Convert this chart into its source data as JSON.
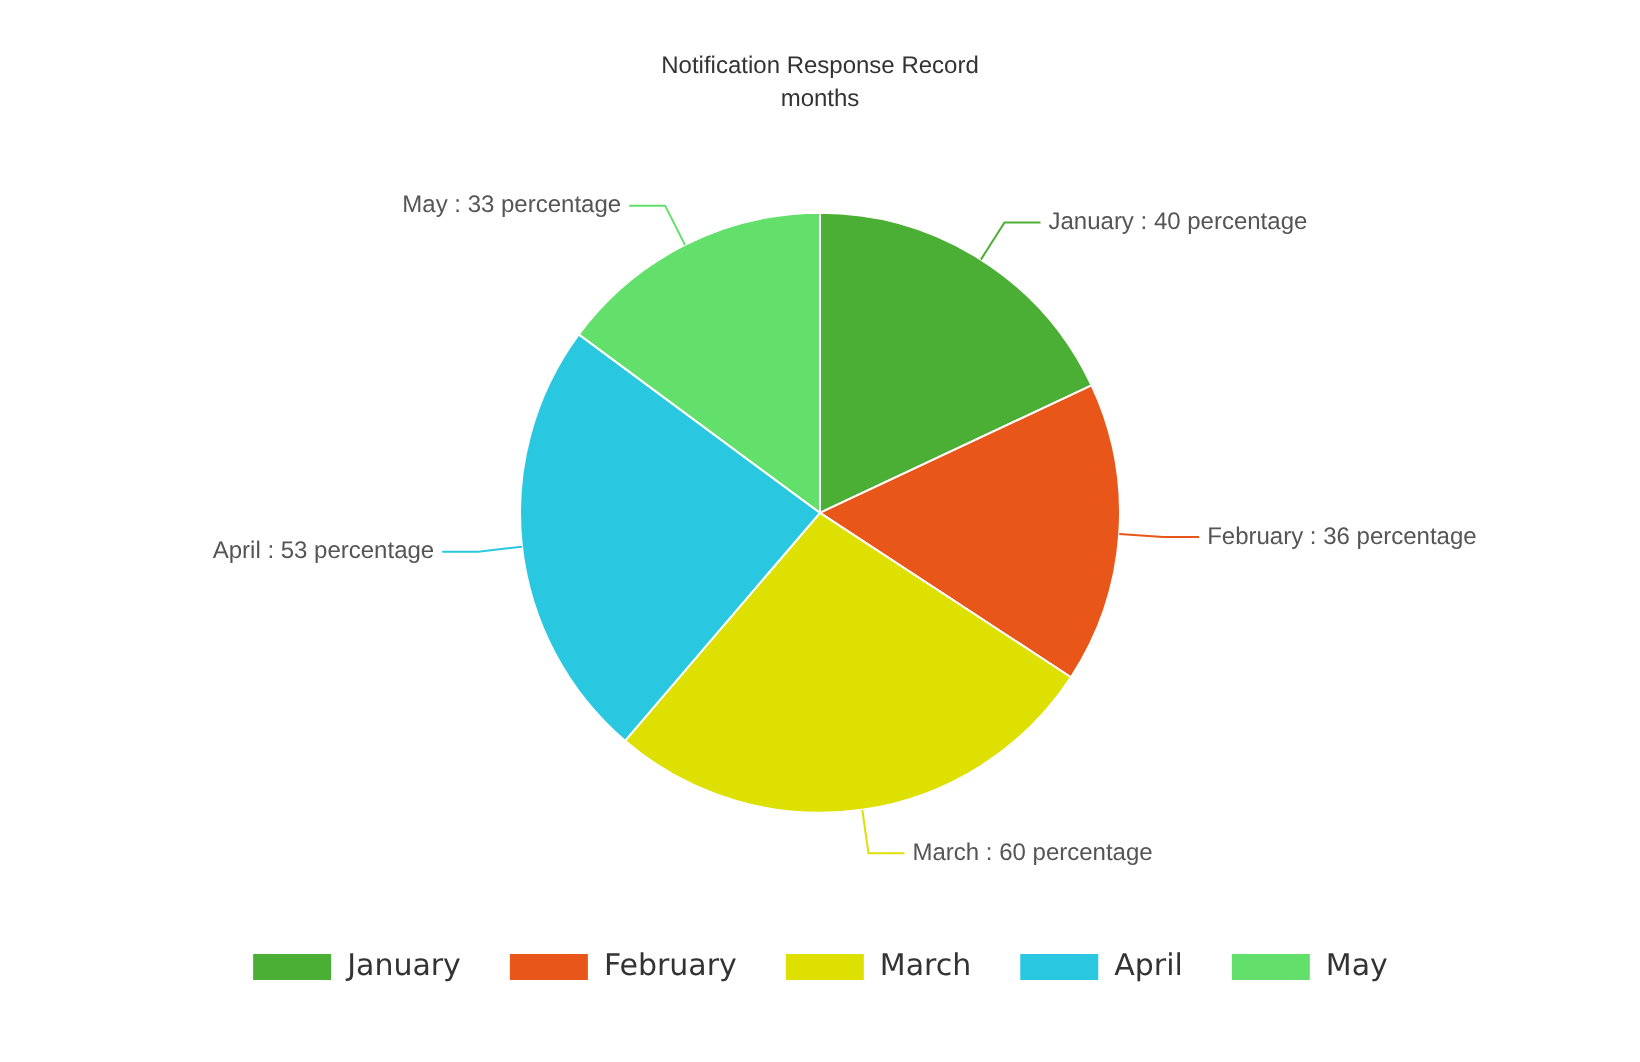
{
  "chart_data": {
    "type": "pie",
    "title": "Notification Response Record",
    "subtitle": "months",
    "categories": [
      "January",
      "February",
      "March",
      "April",
      "May"
    ],
    "values": [
      40,
      36,
      60,
      53,
      33
    ],
    "colors": [
      "#4caf35",
      "#e8561a",
      "#dde000",
      "#2ac8e0",
      "#63e06c"
    ],
    "value_labels": [
      "January : 40 percentage",
      "February : 36 percentage",
      "March : 60 percentage",
      "April : 53 percentage",
      "May : 33 percentage"
    ],
    "legend": "bottom"
  }
}
